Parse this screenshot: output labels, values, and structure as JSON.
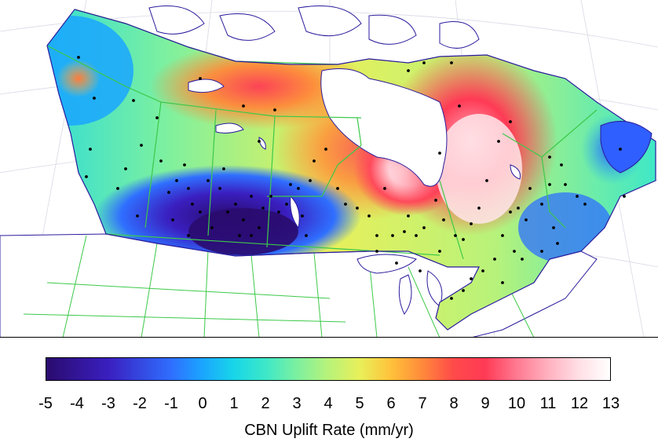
{
  "colorbar": {
    "label": "CBN Uplift Rate (mm/yr)",
    "min": -5,
    "max": 13,
    "ticks": [
      "-5",
      "-4",
      "-3",
      "-2",
      "-1",
      "0",
      "1",
      "2",
      "3",
      "4",
      "5",
      "6",
      "7",
      "8",
      "9",
      "10",
      "11",
      "12",
      "13"
    ],
    "stops": [
      {
        "value": -5,
        "color": "#2a0b6e"
      },
      {
        "value": -3,
        "color": "#3a1fc0"
      },
      {
        "value": -1,
        "color": "#2f6fff"
      },
      {
        "value": 0,
        "color": "#1aa6ff"
      },
      {
        "value": 1,
        "color": "#18d6e8"
      },
      {
        "value": 2,
        "color": "#3de8c8"
      },
      {
        "value": 3,
        "color": "#7cf0a0"
      },
      {
        "value": 4,
        "color": "#b8f27a"
      },
      {
        "value": 5,
        "color": "#e8f05a"
      },
      {
        "value": 6,
        "color": "#ffc23a"
      },
      {
        "value": 7,
        "color": "#ff8a3a"
      },
      {
        "value": 8,
        "color": "#ff4a4a"
      },
      {
        "value": 9,
        "color": "#ff3a55"
      },
      {
        "value": 10,
        "color": "#ff7890"
      },
      {
        "value": 11,
        "color": "#ffb0be"
      },
      {
        "value": 12,
        "color": "#ffdfe5"
      },
      {
        "value": 13,
        "color": "#ffffff"
      }
    ]
  },
  "map": {
    "colors": {
      "land_border": "#2a1b9c",
      "province_border": "#3cc94a",
      "background": "#ffffff"
    }
  }
}
